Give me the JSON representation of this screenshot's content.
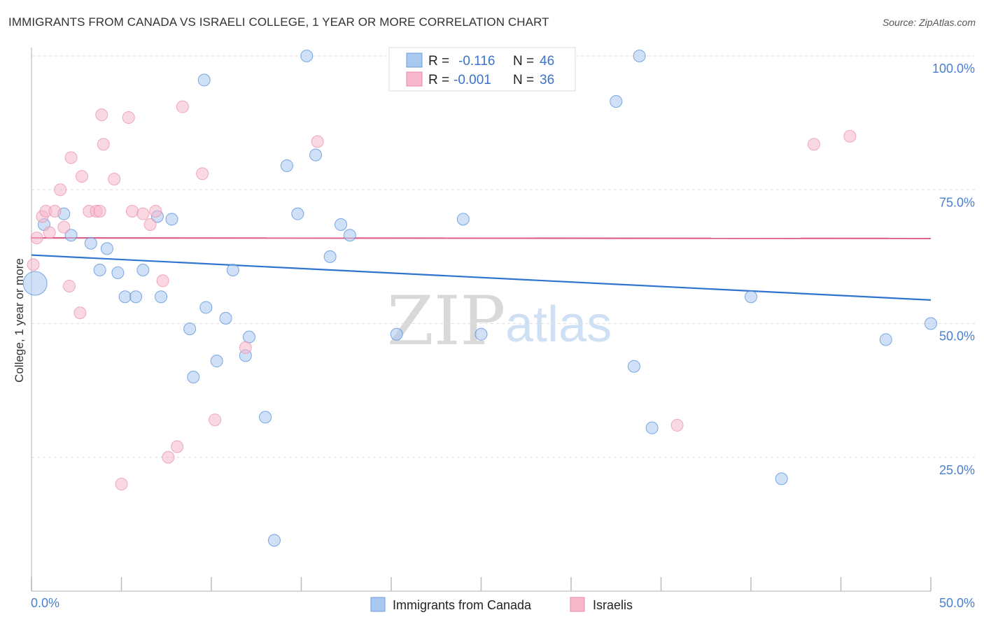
{
  "header": {
    "title": "IMMIGRANTS FROM CANADA VS ISRAELI COLLEGE, 1 YEAR OR MORE CORRELATION CHART",
    "source": "Source: ZipAtlas.com"
  },
  "watermark": {
    "zip": "ZIP",
    "atlas": "atlas"
  },
  "legend": {
    "rows": [
      {
        "r_label": "R =",
        "r_value": "-0.116",
        "n_label": "N =",
        "n_value": "46",
        "color": "#a9c8f0"
      },
      {
        "r_label": "R =",
        "r_value": "-0.001",
        "n_label": "N =",
        "n_value": "36",
        "color": "#f6b8ca"
      }
    ]
  },
  "bottom_legend": {
    "items": [
      {
        "label": "Immigrants from Canada",
        "color": "#a9c8f0"
      },
      {
        "label": "Israelis",
        "color": "#f6b8ca"
      }
    ]
  },
  "chart_data": {
    "type": "scatter",
    "title": "IMMIGRANTS FROM CANADA VS ISRAELI COLLEGE, 1 YEAR OR MORE CORRELATION CHART",
    "xlabel": "",
    "ylabel": "College, 1 year or more",
    "xlim": [
      0,
      50
    ],
    "ylim": [
      0,
      102
    ],
    "x_tick_labels": [
      "0.0%",
      "50.0%"
    ],
    "y_tick_labels": [
      "100.0%",
      "75.0%",
      "50.0%",
      "25.0%"
    ],
    "y_tick_values": [
      100,
      75,
      50,
      25
    ],
    "grid": true,
    "legend_position": "top-center",
    "series": [
      {
        "name": "Immigrants from Canada",
        "color": "#4a86d8",
        "fill": "#a9c8f0",
        "trend": {
          "y_at_x0": 62.8,
          "y_at_x50": 54.4,
          "color": "#2f74d0"
        },
        "points": [
          [
            0.2,
            57.5,
            2
          ],
          [
            0.7,
            68.5,
            1
          ],
          [
            1.8,
            70.5,
            1
          ],
          [
            2.2,
            66.5,
            1
          ],
          [
            3.3,
            65.0,
            1
          ],
          [
            3.8,
            60.0,
            1
          ],
          [
            4.2,
            64.0,
            1
          ],
          [
            4.8,
            59.5,
            1
          ],
          [
            5.2,
            55.0,
            1
          ],
          [
            5.8,
            55.0,
            1
          ],
          [
            6.2,
            60.0,
            1
          ],
          [
            7.0,
            70.0,
            1
          ],
          [
            7.2,
            55.0,
            1
          ],
          [
            7.8,
            69.5,
            1
          ],
          [
            8.8,
            49.0,
            1
          ],
          [
            9.0,
            40.0,
            1
          ],
          [
            9.6,
            95.5,
            1
          ],
          [
            9.7,
            53.0,
            1
          ],
          [
            10.3,
            43.0,
            1
          ],
          [
            10.8,
            51.0,
            1
          ],
          [
            11.2,
            60.0,
            1
          ],
          [
            11.9,
            44.0,
            1
          ],
          [
            12.1,
            47.5,
            1
          ],
          [
            13.0,
            32.5,
            1
          ],
          [
            13.5,
            9.5,
            1
          ],
          [
            14.2,
            79.5,
            1
          ],
          [
            14.8,
            70.5,
            1
          ],
          [
            15.3,
            100.0,
            1
          ],
          [
            15.8,
            81.5,
            1
          ],
          [
            16.6,
            62.5,
            1
          ],
          [
            17.2,
            68.5,
            1
          ],
          [
            17.7,
            66.5,
            1
          ],
          [
            20.3,
            48.0,
            1
          ],
          [
            24.0,
            69.5,
            1
          ],
          [
            25.0,
            48.0,
            1
          ],
          [
            29.0,
            100.0,
            1
          ],
          [
            32.5,
            91.5,
            1
          ],
          [
            33.5,
            42.0,
            1
          ],
          [
            33.8,
            100.0,
            1
          ],
          [
            34.5,
            30.5,
            1
          ],
          [
            40.0,
            55.0,
            1
          ],
          [
            41.7,
            21.0,
            1
          ],
          [
            47.5,
            47.0,
            1
          ],
          [
            50.0,
            50.0,
            1
          ]
        ]
      },
      {
        "name": "Israelis",
        "color": "#e98aa8",
        "fill": "#f6b8ca",
        "trend": {
          "y_at_x0": 66.0,
          "y_at_x50": 65.9,
          "color": "#e0628a"
        },
        "points": [
          [
            0.1,
            61.0,
            1
          ],
          [
            0.3,
            66.0,
            1
          ],
          [
            0.6,
            70.0,
            1
          ],
          [
            0.8,
            71.0,
            1
          ],
          [
            1.0,
            67.0,
            1
          ],
          [
            1.3,
            71.0,
            1
          ],
          [
            1.6,
            75.0,
            1
          ],
          [
            1.8,
            68.0,
            1
          ],
          [
            2.1,
            57.0,
            1
          ],
          [
            2.2,
            81.0,
            1
          ],
          [
            2.7,
            52.0,
            1
          ],
          [
            2.8,
            77.5,
            1
          ],
          [
            3.2,
            71.0,
            1
          ],
          [
            3.6,
            71.0,
            1
          ],
          [
            3.8,
            71.0,
            1
          ],
          [
            3.9,
            89.0,
            1
          ],
          [
            4.0,
            83.5,
            1
          ],
          [
            4.6,
            77.0,
            1
          ],
          [
            5.0,
            20.0,
            1
          ],
          [
            5.4,
            88.5,
            1
          ],
          [
            5.6,
            71.0,
            1
          ],
          [
            6.2,
            70.5,
            1
          ],
          [
            6.6,
            68.5,
            1
          ],
          [
            6.9,
            71.0,
            1
          ],
          [
            7.3,
            58.0,
            1
          ],
          [
            7.6,
            25.0,
            1
          ],
          [
            8.1,
            27.0,
            1
          ],
          [
            8.4,
            90.5,
            1
          ],
          [
            9.5,
            78.0,
            1
          ],
          [
            10.2,
            32.0,
            1
          ],
          [
            11.9,
            45.5,
            1
          ],
          [
            15.9,
            84.0,
            1
          ],
          [
            35.9,
            31.0,
            1
          ],
          [
            43.5,
            83.5,
            1
          ],
          [
            45.5,
            85.0,
            1
          ]
        ]
      }
    ]
  }
}
